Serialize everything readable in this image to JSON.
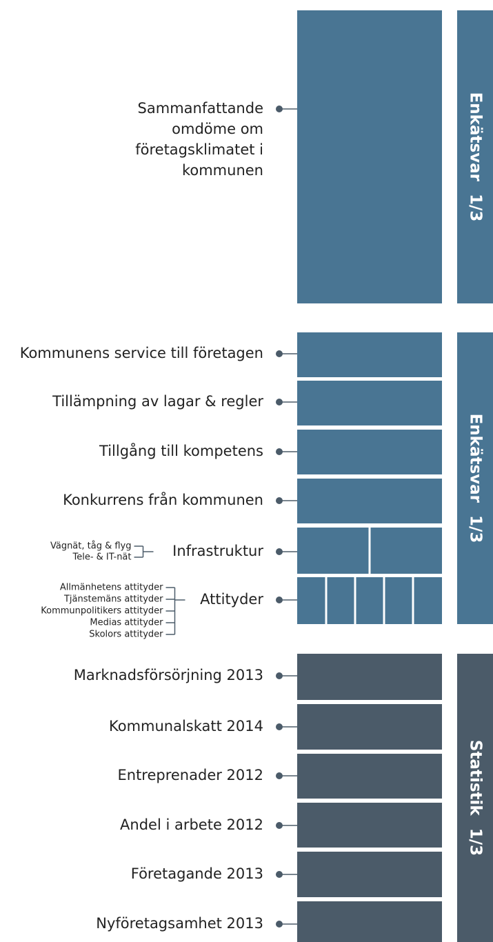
{
  "sections": [
    {
      "side_label": "Enkätsvar 1/3",
      "items": [
        {
          "label_lines": [
            "Sammanfattande",
            "omdöme om",
            "företagsklimatet i",
            "kommunen"
          ]
        }
      ]
    },
    {
      "side_label": "Enkätsvar 1/3",
      "items": [
        {
          "label_lines": [
            "Kommunens service till företagen"
          ]
        },
        {
          "label_lines": [
            "Tillämpning av lagar & regler"
          ]
        },
        {
          "label_lines": [
            "Tillgång till kompetens"
          ]
        },
        {
          "label_lines": [
            "Konkurrens från kommunen"
          ]
        },
        {
          "label_lines": [
            "Infrastruktur"
          ],
          "sub_labels": [
            "Vägnät, tåg & flyg",
            "Tele- & IT-nät"
          ]
        },
        {
          "label_lines": [
            "Attityder"
          ],
          "sub_labels": [
            "Allmänhetens attityder",
            "Tjänstemäns attityder",
            "Kommunpolitikers attityder",
            "Medias attityder",
            "Skolors attityder"
          ]
        }
      ]
    },
    {
      "side_label": "Statistik 1/3",
      "items": [
        {
          "label_lines": [
            "Marknadsförsörjning 2013"
          ]
        },
        {
          "label_lines": [
            "Kommunalskatt 2014"
          ]
        },
        {
          "label_lines": [
            "Entreprenader 2012"
          ]
        },
        {
          "label_lines": [
            "Andel i arbete 2012"
          ]
        },
        {
          "label_lines": [
            "Företagande 2013"
          ]
        },
        {
          "label_lines": [
            "Nyföretagsamhet 2013"
          ]
        }
      ]
    }
  ]
}
